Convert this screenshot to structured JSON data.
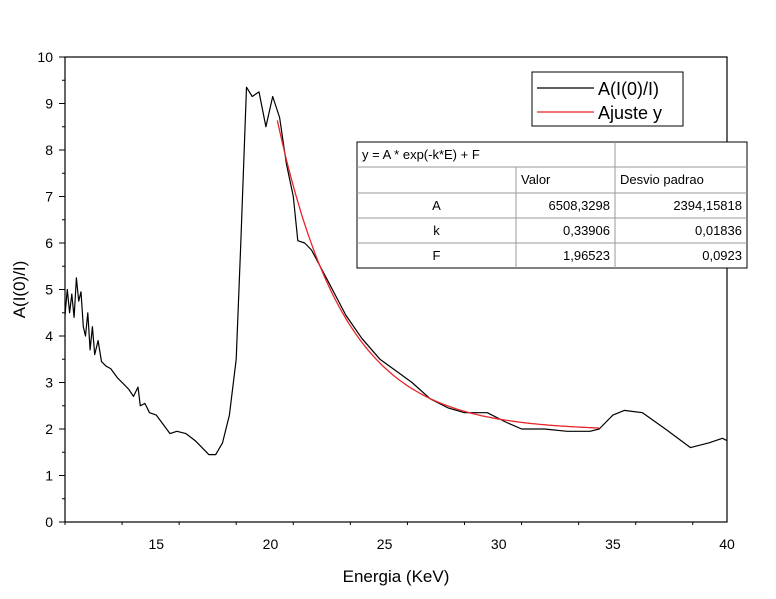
{
  "chart_data": {
    "type": "line",
    "xlabel": "Energia (KeV)",
    "ylabel": "A(I(0)/I)",
    "xlim": [
      11,
      40
    ],
    "ylim": [
      0,
      10
    ],
    "xticks": [
      15,
      20,
      25,
      30,
      35,
      40
    ],
    "yticks": [
      0,
      1,
      2,
      3,
      4,
      5,
      6,
      7,
      8,
      9,
      10
    ],
    "grid": false,
    "legend_position": "top-right",
    "series": [
      {
        "name": "A(I(0)/I)",
        "color": "#000000",
        "points": [
          [
            11.0,
            4.45
          ],
          [
            11.1,
            5.0
          ],
          [
            11.2,
            4.5
          ],
          [
            11.3,
            4.9
          ],
          [
            11.4,
            4.4
          ],
          [
            11.5,
            5.25
          ],
          [
            11.6,
            4.75
          ],
          [
            11.7,
            4.95
          ],
          [
            11.8,
            4.2
          ],
          [
            11.9,
            4.0
          ],
          [
            12.0,
            4.5
          ],
          [
            12.1,
            3.7
          ],
          [
            12.2,
            4.2
          ],
          [
            12.3,
            3.6
          ],
          [
            12.45,
            3.9
          ],
          [
            12.6,
            3.45
          ],
          [
            12.8,
            3.35
          ],
          [
            13.0,
            3.3
          ],
          [
            13.3,
            3.1
          ],
          [
            13.6,
            2.95
          ],
          [
            13.8,
            2.85
          ],
          [
            14.0,
            2.7
          ],
          [
            14.2,
            2.9
          ],
          [
            14.3,
            2.5
          ],
          [
            14.5,
            2.55
          ],
          [
            14.7,
            2.35
          ],
          [
            15.0,
            2.3
          ],
          [
            15.3,
            2.1
          ],
          [
            15.6,
            1.9
          ],
          [
            15.9,
            1.95
          ],
          [
            16.3,
            1.9
          ],
          [
            16.7,
            1.75
          ],
          [
            17.0,
            1.6
          ],
          [
            17.3,
            1.45
          ],
          [
            17.6,
            1.45
          ],
          [
            17.9,
            1.7
          ],
          [
            18.2,
            2.3
          ],
          [
            18.5,
            3.5
          ],
          [
            18.7,
            6.0
          ],
          [
            18.95,
            9.35
          ],
          [
            19.2,
            9.15
          ],
          [
            19.5,
            9.25
          ],
          [
            19.8,
            8.5
          ],
          [
            20.1,
            9.15
          ],
          [
            20.4,
            8.7
          ],
          [
            20.7,
            7.7
          ],
          [
            21.0,
            7.0
          ],
          [
            21.2,
            6.05
          ],
          [
            21.5,
            6.0
          ],
          [
            21.8,
            5.85
          ],
          [
            22.5,
            5.2
          ],
          [
            23.3,
            4.45
          ],
          [
            24.0,
            3.95
          ],
          [
            24.8,
            3.5
          ],
          [
            25.5,
            3.25
          ],
          [
            26.2,
            3.0
          ],
          [
            27.0,
            2.65
          ],
          [
            27.8,
            2.45
          ],
          [
            28.5,
            2.35
          ],
          [
            29.5,
            2.35
          ],
          [
            30.3,
            2.15
          ],
          [
            31.0,
            2.0
          ],
          [
            32.0,
            2.0
          ],
          [
            33.0,
            1.95
          ],
          [
            34.0,
            1.95
          ],
          [
            34.4,
            2.0
          ],
          [
            35.0,
            2.3
          ],
          [
            35.5,
            2.4
          ],
          [
            36.3,
            2.35
          ],
          [
            37.3,
            2.0
          ],
          [
            38.4,
            1.6
          ],
          [
            39.2,
            1.7
          ],
          [
            39.8,
            1.8
          ],
          [
            40.0,
            1.75
          ]
        ]
      },
      {
        "name": "Ajuste y",
        "color": "#e8262a",
        "model": "exp",
        "x_range": [
          20.3,
          34.4
        ]
      }
    ],
    "fit_table": {
      "equation": "y = A * exp(-k*E) + F",
      "headers": [
        "",
        "Valor",
        "Desvio padrao"
      ],
      "rows": [
        {
          "param": "A",
          "value": "6508,3298",
          "error": "2394,15818"
        },
        {
          "param": "k",
          "value": "0,33906",
          "error": "0,01836"
        },
        {
          "param": "F",
          "value": "1,96523",
          "error": "0,0923"
        }
      ],
      "fit_params": {
        "A": 6508.3298,
        "k": 0.33906,
        "F": 1.96523
      }
    }
  }
}
